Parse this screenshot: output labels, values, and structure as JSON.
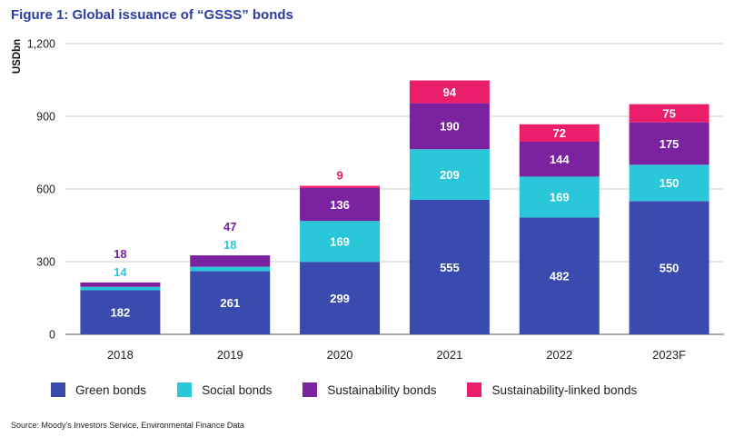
{
  "title": "Figure 1: Global issuance of “GSSS” bonds",
  "source": "Source: Moody's Investors Service, Environmental Finance Data",
  "chart_data": {
    "type": "bar",
    "stacked": true,
    "title": "Figure 1: Global issuance of “GSSS” bonds",
    "xlabel": "",
    "ylabel": "USDbn",
    "ylim": [
      0,
      1200
    ],
    "yticks": [
      0,
      300,
      600,
      900,
      1200
    ],
    "ytick_labels": [
      "0",
      "300",
      "600",
      "900",
      "1,200"
    ],
    "grid": true,
    "legend_position": "bottom",
    "categories": [
      "2018",
      "2019",
      "2020",
      "2021",
      "2022",
      "2023F"
    ],
    "series": [
      {
        "name": "Green bonds",
        "color": "#3a4bb0",
        "label_color": "#ffffff",
        "values": [
          182,
          261,
          299,
          555,
          482,
          550
        ]
      },
      {
        "name": "Social bonds",
        "color": "#29c7d9",
        "label_color": "#ffffff",
        "values": [
          14,
          18,
          169,
          209,
          169,
          150
        ]
      },
      {
        "name": "Sustainability bonds",
        "color": "#7a229f",
        "label_color": "#ffffff",
        "values": [
          18,
          47,
          136,
          190,
          144,
          175
        ]
      },
      {
        "name": "Sustainability-linked bonds",
        "color": "#ea1e6a",
        "label_color": "#ffffff",
        "values": [
          0,
          0,
          9,
          94,
          72,
          75
        ]
      }
    ],
    "outside_labels": [
      {
        "category_index": 0,
        "series_index": 2,
        "text": "18",
        "color": "#7a229f",
        "row": 2
      },
      {
        "category_index": 0,
        "series_index": 1,
        "text": "14",
        "color": "#29c7d9",
        "row": 1
      },
      {
        "category_index": 1,
        "series_index": 2,
        "text": "47",
        "color": "#7a229f",
        "row": 2
      },
      {
        "category_index": 1,
        "series_index": 1,
        "text": "18",
        "color": "#29c7d9",
        "row": 1
      },
      {
        "category_index": 2,
        "series_index": 3,
        "text": "9",
        "color": "#ea1e6a",
        "row": 1
      }
    ]
  }
}
